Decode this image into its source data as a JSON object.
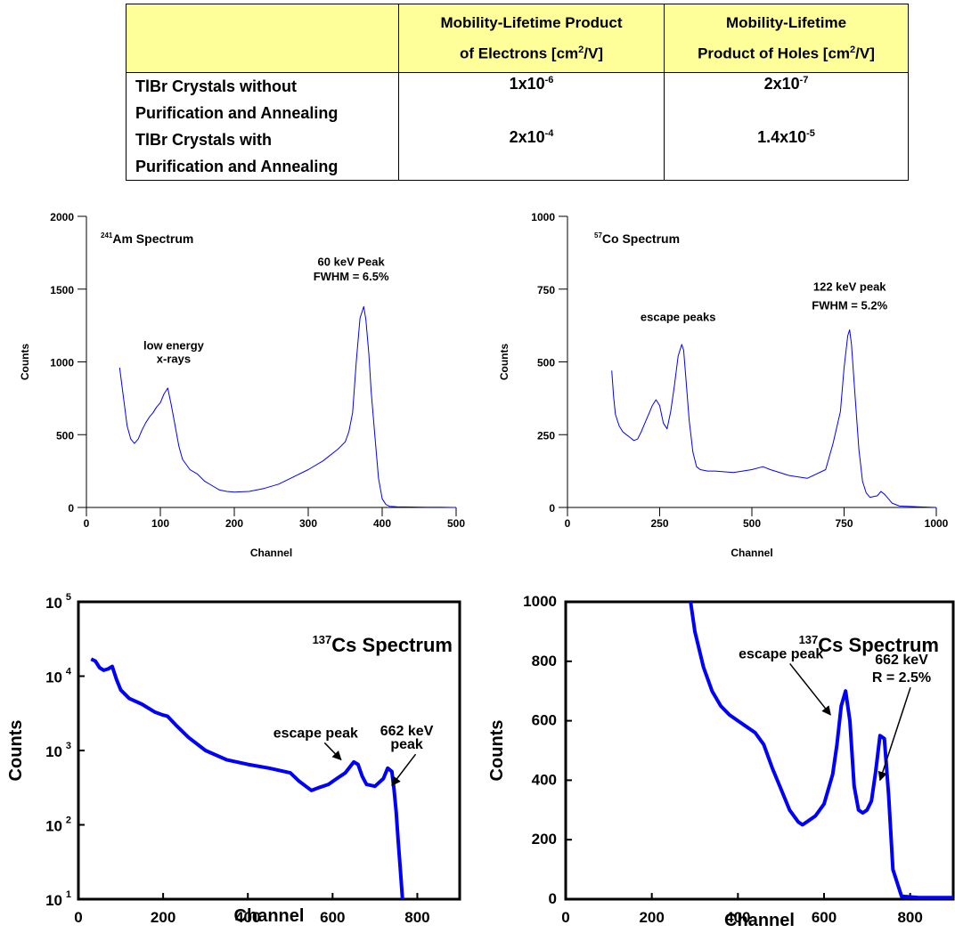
{
  "table": {
    "col1_lines": [
      "Mobility-Lifetime Product",
      "of Electrons [cm",
      "2",
      "/V]"
    ],
    "col2_lines": [
      "Mobility-Lifetime",
      "Product of Holes [cm",
      "2",
      "/V]"
    ],
    "rows": [
      {
        "label_lines": [
          "TlBr Crystals without",
          "Purification and Annealing"
        ],
        "electrons": {
          "mant": "1x10",
          "exp": "-6"
        },
        "holes": {
          "mant": "2x10",
          "exp": "-7"
        }
      },
      {
        "label_lines": [
          "TlBr Crystals with",
          "Purification and Annealing"
        ],
        "electrons": {
          "mant": "2x10",
          "exp": "-4"
        },
        "holes": {
          "mant": "1.4x10",
          "exp": "-5"
        }
      }
    ]
  },
  "chart_data": [
    {
      "type": "line",
      "title_sup": "241",
      "title": "Am Spectrum",
      "xlabel": "Channel",
      "ylabel": "Counts",
      "xlim": [
        0,
        500
      ],
      "ylim": [
        0,
        2000
      ],
      "xticks": [
        0,
        100,
        200,
        300,
        400,
        500
      ],
      "yticks": [
        0,
        500,
        1000,
        1500,
        2000
      ],
      "line_color": "#0000ff",
      "annotations": [
        {
          "text": "low energy",
          "x": 118,
          "y": 1085
        },
        {
          "text": "x-rays",
          "x": 118,
          "y": 995
        },
        {
          "text": "60 keV Peak",
          "x": 358,
          "y": 1660
        },
        {
          "text": "FWHM = 6.5%",
          "x": 358,
          "y": 1560
        }
      ],
      "x": [
        45,
        50,
        55,
        60,
        65,
        70,
        75,
        80,
        85,
        90,
        95,
        100,
        105,
        110,
        115,
        120,
        125,
        130,
        140,
        150,
        160,
        170,
        180,
        190,
        200,
        220,
        240,
        260,
        280,
        300,
        320,
        340,
        350,
        355,
        360,
        365,
        370,
        375,
        378,
        382,
        385,
        390,
        395,
        400,
        405,
        410,
        420,
        440,
        460,
        480,
        500
      ],
      "y": [
        960,
        760,
        560,
        470,
        440,
        470,
        530,
        580,
        620,
        650,
        690,
        720,
        780,
        820,
        700,
        560,
        420,
        330,
        260,
        230,
        180,
        150,
        120,
        110,
        105,
        110,
        130,
        160,
        210,
        260,
        320,
        400,
        450,
        520,
        650,
        1000,
        1300,
        1380,
        1290,
        1050,
        800,
        500,
        200,
        60,
        20,
        8,
        5,
        3,
        2,
        1,
        0
      ]
    },
    {
      "type": "line",
      "title_sup": "57",
      "title": "Co Spectrum",
      "xlabel": "Channel",
      "ylabel": "Counts",
      "xlim": [
        0,
        1000
      ],
      "ylim": [
        0,
        1000
      ],
      "xticks": [
        0,
        250,
        500,
        750,
        1000
      ],
      "yticks": [
        0,
        250,
        500,
        750,
        1000
      ],
      "line_color": "#0000ff",
      "annotations": [
        {
          "text": "escape peaks",
          "x": 300,
          "y": 640
        },
        {
          "text": "122 keV peak",
          "x": 765,
          "y": 745
        },
        {
          "text": "FWHM = 5.2%",
          "x": 765,
          "y": 680
        }
      ],
      "x": [
        120,
        125,
        130,
        140,
        150,
        160,
        170,
        180,
        190,
        200,
        210,
        220,
        230,
        240,
        250,
        260,
        270,
        280,
        290,
        300,
        310,
        315,
        320,
        330,
        340,
        350,
        360,
        380,
        400,
        450,
        500,
        530,
        550,
        600,
        650,
        700,
        720,
        740,
        750,
        760,
        765,
        770,
        780,
        790,
        800,
        810,
        820,
        840,
        850,
        860,
        870,
        880,
        900,
        950,
        1000
      ],
      "y": [
        470,
        380,
        320,
        280,
        260,
        250,
        240,
        230,
        235,
        260,
        290,
        320,
        350,
        370,
        350,
        290,
        270,
        330,
        420,
        520,
        560,
        540,
        460,
        300,
        190,
        140,
        130,
        125,
        125,
        120,
        130,
        140,
        130,
        110,
        100,
        130,
        220,
        330,
        480,
        590,
        610,
        560,
        380,
        200,
        90,
        50,
        35,
        40,
        55,
        45,
        30,
        15,
        5,
        2,
        0
      ]
    },
    {
      "type": "line",
      "title_sup": "137",
      "title": "Cs Spectrum",
      "xlabel": "Channel",
      "ylabel": "Counts",
      "yscale": "log",
      "xlim": [
        0,
        900
      ],
      "ylim": [
        10,
        100000
      ],
      "xticks": [
        0,
        200,
        400,
        600,
        800
      ],
      "yticks": [
        {
          "mant": "10",
          "exp": "1",
          "v": 10
        },
        {
          "mant": "10",
          "exp": "2",
          "v": 100
        },
        {
          "mant": "10",
          "exp": "3",
          "v": 1000
        },
        {
          "mant": "10",
          "exp": "4",
          "v": 10000
        },
        {
          "mant": "10",
          "exp": "5",
          "v": 100000
        }
      ],
      "line_color": "#0000ff",
      "annotations": [
        {
          "text": "escape peak",
          "x": 560,
          "y": 1500,
          "arrow_to": [
            620,
            750
          ]
        },
        {
          "text": "662 keV",
          "x": 775,
          "y": 1600
        },
        {
          "text": "peak",
          "x": 775,
          "y": 1050,
          "arrow_to": [
            740,
            340
          ]
        }
      ],
      "x": [
        30,
        40,
        50,
        60,
        70,
        80,
        90,
        100,
        120,
        150,
        180,
        200,
        210,
        230,
        260,
        300,
        350,
        400,
        450,
        500,
        520,
        540,
        550,
        570,
        590,
        610,
        630,
        650,
        660,
        670,
        680,
        700,
        720,
        730,
        740,
        745,
        750,
        755,
        760,
        765
      ],
      "y": [
        17000,
        16000,
        13000,
        12000,
        12500,
        13500,
        9000,
        6500,
        5000,
        4200,
        3300,
        3000,
        2900,
        2200,
        1500,
        1000,
        750,
        650,
        580,
        500,
        390,
        320,
        290,
        320,
        350,
        420,
        500,
        700,
        650,
        450,
        350,
        330,
        420,
        580,
        520,
        300,
        150,
        60,
        25,
        10
      ]
    },
    {
      "type": "line",
      "title_sup": "137",
      "title": "Cs Spectrum",
      "xlabel": "Channel",
      "ylabel": "Counts",
      "xlim": [
        0,
        900
      ],
      "ylim": [
        0,
        1000
      ],
      "xticks": [
        0,
        200,
        400,
        600,
        800
      ],
      "yticks": [
        0,
        200,
        400,
        600,
        800,
        1000
      ],
      "line_color": "#0000ff",
      "annotations": [
        {
          "text": "escape peak",
          "x": 500,
          "y": 810,
          "arrow_to": [
            615,
            620
          ]
        },
        {
          "text": "662 keV",
          "x": 780,
          "y": 790
        },
        {
          "text": "R = 2.5%",
          "x": 780,
          "y": 730,
          "arrow_to": [
            730,
            400
          ]
        }
      ],
      "x": [
        290,
        300,
        320,
        340,
        360,
        380,
        400,
        420,
        440,
        460,
        480,
        500,
        520,
        540,
        550,
        560,
        580,
        600,
        620,
        630,
        640,
        650,
        660,
        670,
        680,
        690,
        700,
        710,
        720,
        730,
        740,
        750,
        760,
        780,
        820,
        860,
        900
      ],
      "y": [
        1000,
        900,
        780,
        700,
        650,
        620,
        600,
        580,
        560,
        520,
        440,
        370,
        300,
        260,
        250,
        260,
        280,
        320,
        420,
        520,
        650,
        700,
        600,
        380,
        300,
        290,
        300,
        330,
        430,
        550,
        540,
        350,
        100,
        10,
        5,
        5,
        5
      ]
    }
  ]
}
